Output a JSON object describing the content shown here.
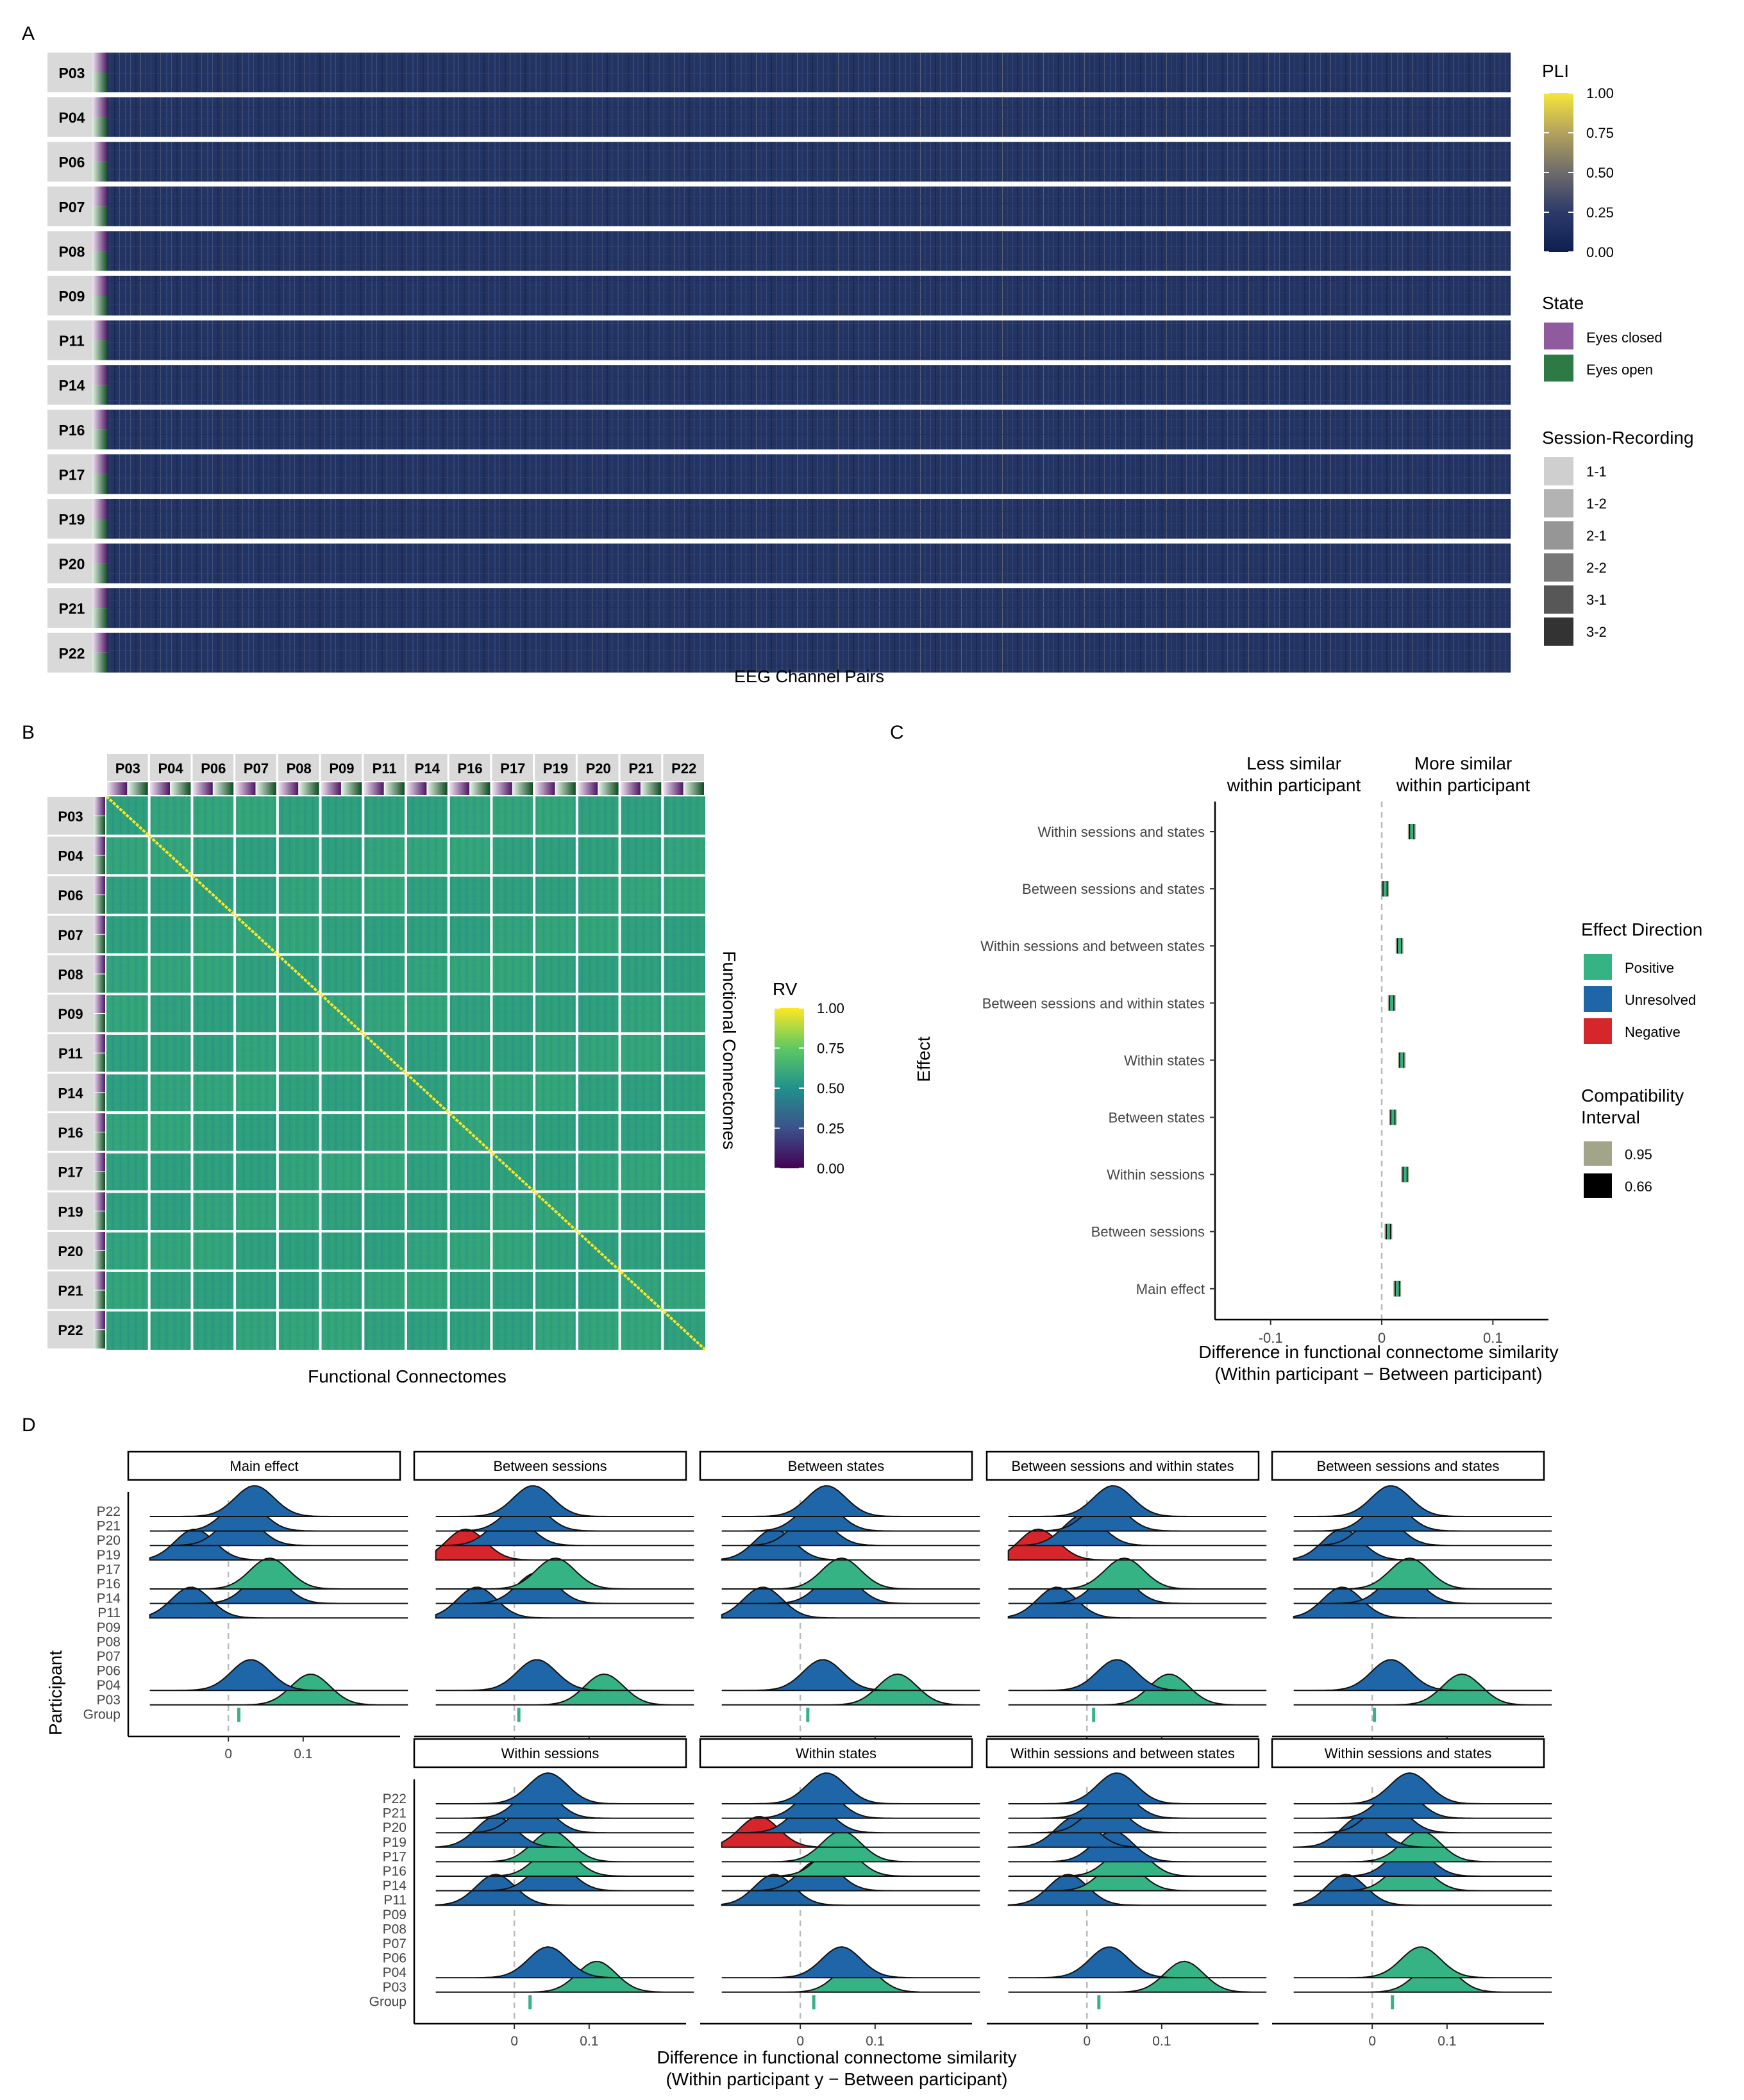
{
  "panel_letters": [
    "A",
    "B",
    "C",
    "D"
  ],
  "participants": [
    "P03",
    "P04",
    "P06",
    "P07",
    "P08",
    "P09",
    "P11",
    "P14",
    "P16",
    "P17",
    "P19",
    "P20",
    "P21",
    "P22"
  ],
  "colors": {
    "viridis": [
      "#440154",
      "#3b528b",
      "#21918c",
      "#5ec962",
      "#fde725"
    ],
    "pli_scale": [
      "#0d1f4f",
      "#2c3a6b",
      "#6e6b6a",
      "#b3a25d",
      "#f6e63b"
    ],
    "eyes_closed": "#8f5b9e",
    "eyes_open": "#2e7a45",
    "positive": "#35b385",
    "unresolved": "#1f66a8",
    "negative": "#d7262b",
    "ci_95": "#a3a58a",
    "ci_66": "#000000",
    "strip": "#d9d9d9",
    "grid_dash": "#bbbbbb"
  },
  "chart_data": [
    {
      "type": "heatmap",
      "panel": "A",
      "xlabel": "EEG Channel Pairs",
      "rows": [
        "P03",
        "P04",
        "P06",
        "P07",
        "P08",
        "P09",
        "P11",
        "P14",
        "P16",
        "P17",
        "P19",
        "P20",
        "P21",
        "P22"
      ],
      "fill_legend_title": "PLI",
      "fill_ticks": [
        1.0,
        0.75,
        0.5,
        0.25,
        0.0
      ],
      "fill_tick_labels": [
        "1.00",
        "0.75",
        "0.50",
        "0.25",
        "0.00"
      ],
      "state_legend_title": "State",
      "state_labels": [
        "Eyes closed",
        "Eyes open"
      ],
      "session_legend_title": "Session-Recording",
      "session_labels": [
        "1-1",
        "1-2",
        "2-1",
        "2-2",
        "3-1",
        "3-2"
      ],
      "session_colors": [
        "#cfcfcf",
        "#b3b3b3",
        "#969696",
        "#777777",
        "#575757",
        "#333333"
      ]
    },
    {
      "type": "heatmap",
      "panel": "B",
      "xlabel": "Functional Connectomes",
      "ylabel": "Functional Connectomes",
      "rows": [
        "P03",
        "P04",
        "P06",
        "P07",
        "P08",
        "P09",
        "P11",
        "P14",
        "P16",
        "P17",
        "P19",
        "P20",
        "P21",
        "P22"
      ],
      "columns": [
        "P03",
        "P04",
        "P06",
        "P07",
        "P08",
        "P09",
        "P11",
        "P14",
        "P16",
        "P17",
        "P19",
        "P20",
        "P21",
        "P22"
      ],
      "fill_legend_title": "RV",
      "fill_ticks": [
        1.0,
        0.75,
        0.5,
        0.25,
        0.0
      ],
      "fill_tick_labels": [
        "1.00",
        "0.75",
        "0.50",
        "0.25",
        "0.00"
      ],
      "diagonal_value": 1.0
    },
    {
      "type": "scatter",
      "panel": "C",
      "xlabel": [
        "Difference in functional connectome similarity",
        "(Within participant − Between participant)"
      ],
      "ylabel": "Effect",
      "top_labels": [
        [
          "Less similar",
          "within participant"
        ],
        [
          "More similar",
          "within participant"
        ]
      ],
      "xlim": [
        -0.15,
        0.15
      ],
      "xticks": [
        -0.1,
        0,
        0.1
      ],
      "xtick_labels": [
        "-0.1",
        "0",
        "0.1"
      ],
      "categories": [
        "Within sessions and states",
        "Between sessions and states",
        "Within sessions and between states",
        "Between sessions and within states",
        "Within states",
        "Between states",
        "Within sessions",
        "Between sessions",
        "Main effect"
      ],
      "estimates": [
        0.027,
        0.003,
        0.016,
        0.009,
        0.018,
        0.01,
        0.021,
        0.006,
        0.014
      ],
      "directions": [
        "Positive",
        "Positive",
        "Positive",
        "Positive",
        "Positive",
        "Positive",
        "Positive",
        "Positive",
        "Positive"
      ],
      "legend_direction_title": "Effect Direction",
      "legend_direction": [
        "Positive",
        "Unresolved",
        "Negative"
      ],
      "legend_ci_title": [
        "Compatibility",
        "Interval"
      ],
      "legend_ci": [
        "0.95",
        "0.66"
      ]
    },
    {
      "type": "area",
      "panel": "D",
      "xlabel": [
        "Difference in functional connectome similarity",
        "(Within participant y − Between participant)"
      ],
      "ylabel": "Participant",
      "rows": [
        "P22",
        "P21",
        "P20",
        "P19",
        "P17",
        "P16",
        "P14",
        "P11",
        "P09",
        "P08",
        "P07",
        "P06",
        "P04",
        "P03",
        "Group"
      ],
      "xticks": [
        0,
        0.1
      ],
      "xtick_labels": [
        "0",
        "0.1"
      ],
      "facets": [
        {
          "title": "Main effect",
          "group": 0.014,
          "ridges": [
            {
              "p": "P22",
              "mu": 0.035,
              "dir": "U"
            },
            {
              "p": "P21",
              "mu": 0.02,
              "dir": "U"
            },
            {
              "p": "P20",
              "mu": 0.015,
              "dir": "U"
            },
            {
              "p": "P19",
              "mu": -0.045,
              "dir": "U"
            },
            {
              "p": "P16",
              "mu": 0.055,
              "dir": "P"
            },
            {
              "p": "P14",
              "mu": 0.05,
              "dir": "U"
            },
            {
              "p": "P11",
              "mu": -0.05,
              "dir": "U"
            },
            {
              "p": "P04",
              "mu": 0.03,
              "dir": "U"
            },
            {
              "p": "P03",
              "mu": 0.11,
              "dir": "P"
            }
          ]
        },
        {
          "title": "Between sessions",
          "group": 0.006,
          "ridges": [
            {
              "p": "P22",
              "mu": 0.025,
              "dir": "U"
            },
            {
              "p": "P21",
              "mu": 0.015,
              "dir": "U"
            },
            {
              "p": "P20",
              "mu": -0.005,
              "dir": "U"
            },
            {
              "p": "P19",
              "mu": -0.065,
              "dir": "N"
            },
            {
              "p": "P16",
              "mu": 0.055,
              "dir": "P"
            },
            {
              "p": "P14",
              "mu": 0.03,
              "dir": "U"
            },
            {
              "p": "P11",
              "mu": -0.05,
              "dir": "U"
            },
            {
              "p": "P04",
              "mu": 0.03,
              "dir": "U"
            },
            {
              "p": "P03",
              "mu": 0.12,
              "dir": "P"
            }
          ]
        },
        {
          "title": "Between states",
          "group": 0.01,
          "ridges": [
            {
              "p": "P22",
              "mu": 0.035,
              "dir": "U"
            },
            {
              "p": "P21",
              "mu": 0.025,
              "dir": "U"
            },
            {
              "p": "P20",
              "mu": 0.015,
              "dir": "U"
            },
            {
              "p": "P19",
              "mu": -0.035,
              "dir": "U"
            },
            {
              "p": "P16",
              "mu": 0.055,
              "dir": "P"
            },
            {
              "p": "P14",
              "mu": 0.05,
              "dir": "U"
            },
            {
              "p": "P11",
              "mu": -0.05,
              "dir": "U"
            },
            {
              "p": "P04",
              "mu": 0.03,
              "dir": "U"
            },
            {
              "p": "P03",
              "mu": 0.13,
              "dir": "P"
            }
          ]
        },
        {
          "title": "Between sessions and within states",
          "group": 0.009,
          "ridges": [
            {
              "p": "P22",
              "mu": 0.035,
              "dir": "U"
            },
            {
              "p": "P21",
              "mu": 0.025,
              "dir": "U"
            },
            {
              "p": "P20",
              "mu": -0.005,
              "dir": "U"
            },
            {
              "p": "P19",
              "mu": -0.065,
              "dir": "N"
            },
            {
              "p": "P16",
              "mu": 0.05,
              "dir": "P"
            },
            {
              "p": "P14",
              "mu": 0.035,
              "dir": "U"
            },
            {
              "p": "P11",
              "mu": -0.04,
              "dir": "U"
            },
            {
              "p": "P04",
              "mu": 0.04,
              "dir": "U"
            },
            {
              "p": "P03",
              "mu": 0.11,
              "dir": "P"
            }
          ]
        },
        {
          "title": "Between sessions and states",
          "group": 0.003,
          "ridges": [
            {
              "p": "P22",
              "mu": 0.025,
              "dir": "U"
            },
            {
              "p": "P21",
              "mu": 0.02,
              "dir": "U"
            },
            {
              "p": "P20",
              "mu": 0.01,
              "dir": "U"
            },
            {
              "p": "P19",
              "mu": -0.04,
              "dir": "U"
            },
            {
              "p": "P16",
              "mu": 0.05,
              "dir": "P"
            },
            {
              "p": "P14",
              "mu": 0.04,
              "dir": "U"
            },
            {
              "p": "P11",
              "mu": -0.04,
              "dir": "U"
            },
            {
              "p": "P04",
              "mu": 0.025,
              "dir": "U"
            },
            {
              "p": "P03",
              "mu": 0.12,
              "dir": "P"
            }
          ]
        },
        {
          "title": "Within sessions",
          "group": 0.021,
          "ridges": [
            {
              "p": "P22",
              "mu": 0.045,
              "dir": "U"
            },
            {
              "p": "P21",
              "mu": 0.03,
              "dir": "U"
            },
            {
              "p": "P20",
              "mu": 0.025,
              "dir": "U"
            },
            {
              "p": "P19",
              "mu": -0.025,
              "dir": "U"
            },
            {
              "p": "P17",
              "mu": 0.05,
              "dir": "P"
            },
            {
              "p": "P16",
              "mu": 0.055,
              "dir": "P"
            },
            {
              "p": "P14",
              "mu": 0.05,
              "dir": "U"
            },
            {
              "p": "P11",
              "mu": -0.025,
              "dir": "U"
            },
            {
              "p": "P04",
              "mu": 0.045,
              "dir": "U"
            },
            {
              "p": "P03",
              "mu": 0.11,
              "dir": "P"
            }
          ]
        },
        {
          "title": "Within states",
          "group": 0.018,
          "ridges": [
            {
              "p": "P22",
              "mu": 0.035,
              "dir": "U"
            },
            {
              "p": "P21",
              "mu": 0.025,
              "dir": "U"
            },
            {
              "p": "P20",
              "mu": 0.015,
              "dir": "U"
            },
            {
              "p": "P19",
              "mu": -0.055,
              "dir": "N"
            },
            {
              "p": "P17",
              "mu": 0.055,
              "dir": "P"
            },
            {
              "p": "P16",
              "mu": 0.05,
              "dir": "P"
            },
            {
              "p": "P14",
              "mu": 0.025,
              "dir": "U"
            },
            {
              "p": "P11",
              "mu": -0.035,
              "dir": "U"
            },
            {
              "p": "P04",
              "mu": 0.055,
              "dir": "U"
            },
            {
              "p": "P03",
              "mu": 0.075,
              "dir": "P"
            }
          ]
        },
        {
          "title": "Within sessions and between states",
          "group": 0.016,
          "ridges": [
            {
              "p": "P22",
              "mu": 0.04,
              "dir": "U"
            },
            {
              "p": "P21",
              "mu": 0.035,
              "dir": "U"
            },
            {
              "p": "P20",
              "mu": 0.025,
              "dir": "U"
            },
            {
              "p": "P19",
              "mu": -0.015,
              "dir": "U"
            },
            {
              "p": "P17",
              "mu": 0.035,
              "dir": "U"
            },
            {
              "p": "P16",
              "mu": 0.055,
              "dir": "P"
            },
            {
              "p": "P14",
              "mu": 0.045,
              "dir": "P"
            },
            {
              "p": "P11",
              "mu": -0.025,
              "dir": "U"
            },
            {
              "p": "P04",
              "mu": 0.03,
              "dir": "U"
            },
            {
              "p": "P03",
              "mu": 0.13,
              "dir": "P"
            }
          ]
        },
        {
          "title": "Within sessions and states",
          "group": 0.027,
          "ridges": [
            {
              "p": "P22",
              "mu": 0.05,
              "dir": "U"
            },
            {
              "p": "P21",
              "mu": 0.035,
              "dir": "U"
            },
            {
              "p": "P20",
              "mu": 0.02,
              "dir": "U"
            },
            {
              "p": "P19",
              "mu": -0.015,
              "dir": "U"
            },
            {
              "p": "P17",
              "mu": 0.065,
              "dir": "P"
            },
            {
              "p": "P16",
              "mu": 0.05,
              "dir": "U"
            },
            {
              "p": "P14",
              "mu": 0.05,
              "dir": "P"
            },
            {
              "p": "P11",
              "mu": -0.035,
              "dir": "U"
            },
            {
              "p": "P04",
              "mu": 0.065,
              "dir": "P"
            },
            {
              "p": "P03",
              "mu": 0.085,
              "dir": "P"
            }
          ]
        }
      ]
    }
  ]
}
